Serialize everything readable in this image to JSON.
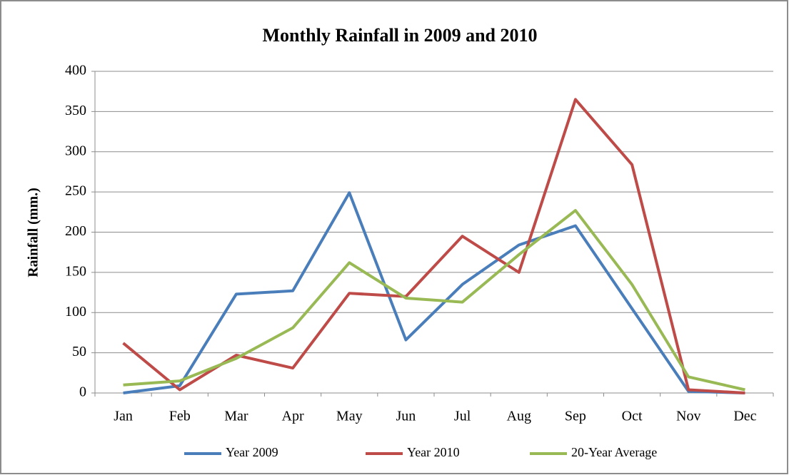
{
  "chart_data": {
    "type": "line",
    "title": "Monthly Rainfall in 2009 and 2010",
    "y_label": "Rainfall (mm.)",
    "categories": [
      "Jan",
      "Feb",
      "Mar",
      "Apr",
      "May",
      "Jun",
      "Jul",
      "Aug",
      "Sep",
      "Oct",
      "Nov",
      "Dec"
    ],
    "series": [
      {
        "name": "Year 2009",
        "color": "#4a7ebb",
        "values": [
          0,
          9,
          123,
          127,
          249,
          66,
          135,
          184,
          208,
          105,
          2,
          0
        ]
      },
      {
        "name": "Year 2010",
        "color": "#be4b48",
        "values": [
          62,
          4,
          47,
          31,
          124,
          120,
          195,
          150,
          365,
          284,
          4,
          0
        ]
      },
      {
        "name": "20-Year Average",
        "color": "#98b954",
        "values": [
          10,
          15,
          43,
          81,
          162,
          118,
          113,
          172,
          227,
          135,
          20,
          4
        ]
      }
    ],
    "ylim": [
      0,
      400
    ],
    "yticks": [
      0,
      50,
      100,
      150,
      200,
      250,
      300,
      350,
      400
    ],
    "grid": true,
    "legend": "bottom"
  }
}
